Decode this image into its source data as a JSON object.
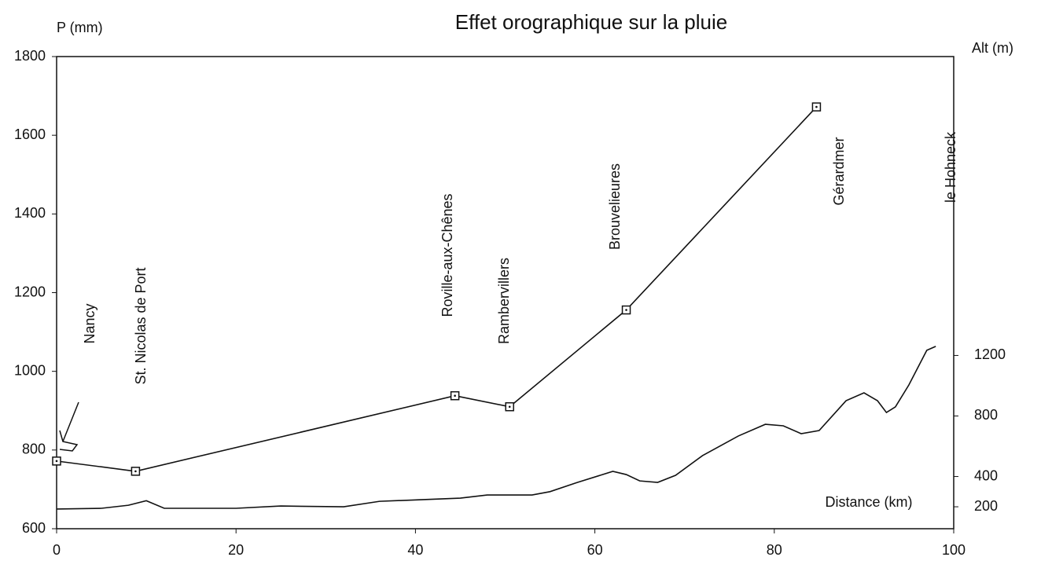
{
  "chart_data": {
    "type": "line",
    "title": "Effet orographique sur la pluie",
    "y_label": "P (mm)",
    "y2_label": "Alt (m)",
    "x_label": "Distance (km)",
    "xlim": [
      0,
      100
    ],
    "xticks": [
      0,
      20,
      40,
      60,
      80,
      100
    ],
    "ylim": [
      600,
      1800
    ],
    "yticks": [
      600,
      800,
      1000,
      1200,
      1400,
      1600,
      1800
    ],
    "y2lim": [
      55,
      3175
    ],
    "y2ticks": [
      200,
      400,
      800,
      1200
    ],
    "grid": false,
    "series": [
      {
        "color": "#111111",
        "markers": true,
        "axis": "y",
        "x": [
          0,
          8.8,
          44.4,
          50.5,
          63.5,
          84.7
        ],
        "values": [
          772,
          746,
          938,
          910,
          1156,
          1672
        ]
      },
      {
        "color": "#111111",
        "markers": false,
        "axis": "y2",
        "x": [
          0,
          5,
          8,
          10,
          12,
          20,
          25,
          32,
          36,
          45,
          48,
          53,
          55,
          58,
          62,
          63.5,
          65,
          67,
          69,
          72,
          76,
          79,
          81,
          83,
          85,
          88,
          90,
          91.5,
          92.5,
          93.5,
          95,
          97,
          98
        ],
        "values": [
          185,
          190,
          210,
          240,
          190,
          190,
          205,
          200,
          236,
          257,
          278,
          278,
          300,
          360,
          434,
          413,
          371,
          361,
          408,
          538,
          668,
          745,
          735,
          683,
          704,
          901,
          953,
          901,
          823,
          860,
          1005,
          1234,
          1260
        ]
      }
    ],
    "annotations": [
      "Nancy",
      "St. Nicolas de Port",
      "Roville-aux-Chênes",
      "Rambervillers",
      "Brouvelieures",
      "Gérardmer",
      "le Hohneck"
    ]
  }
}
